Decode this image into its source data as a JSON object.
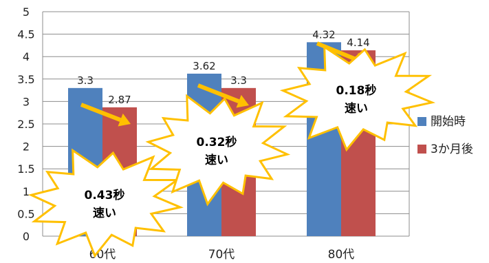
{
  "chart_data": {
    "type": "bar",
    "categories": [
      "60代",
      "70代",
      "80代"
    ],
    "series": [
      {
        "name": "開始時",
        "values": [
          3.3,
          3.62,
          4.32
        ],
        "color": "#4F81BD"
      },
      {
        "name": "3か月後",
        "values": [
          2.87,
          3.3,
          4.14
        ],
        "color": "#C0504D"
      }
    ],
    "ylim": [
      0,
      5
    ],
    "yticks": [
      "0",
      "0.5",
      "1",
      "1.5",
      "2",
      "2.5",
      "3",
      "3.5",
      "4",
      "4.5",
      "5"
    ],
    "grid": true,
    "legend_position": "right",
    "annotations": [
      {
        "category": "60代",
        "line1": "0.43秒",
        "line2": "速い"
      },
      {
        "category": "70代",
        "line1": "0.32秒",
        "line2": "速い"
      },
      {
        "category": "80代",
        "line1": "0.18秒",
        "line2": "速い"
      }
    ],
    "arrow_color": "#FFC000",
    "burst_fill": "#FFFFFF",
    "burst_stroke": "#FFC000"
  }
}
